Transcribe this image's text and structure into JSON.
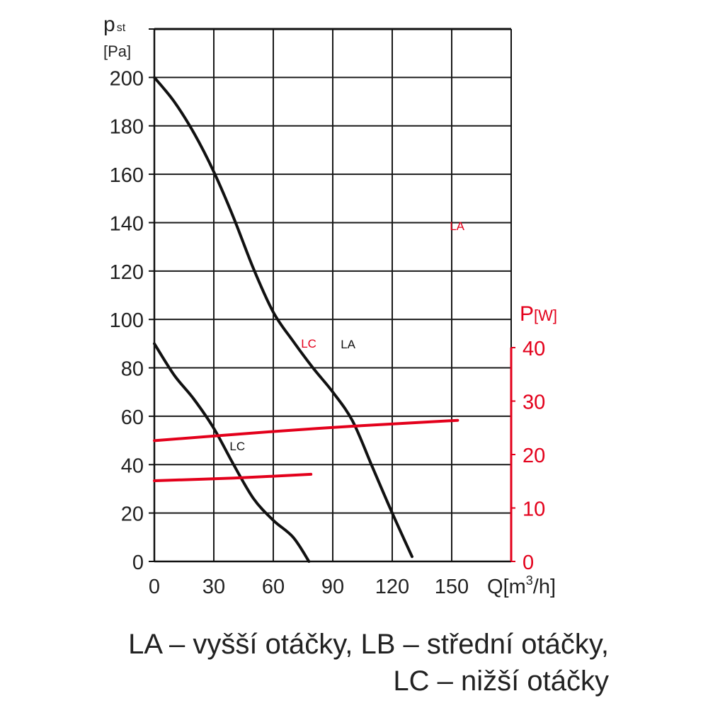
{
  "chart_data": {
    "type": "line",
    "x_axis": {
      "label": "Q[m³/h]",
      "label_prefix": "Q[m",
      "label_sup": "3",
      "label_suffix": "/h]",
      "range": [
        0,
        180
      ],
      "ticks": [
        0,
        30,
        60,
        90,
        120,
        150
      ],
      "tick_labels": [
        "0",
        "30",
        "60",
        "90",
        "120",
        "150"
      ]
    },
    "y_axis_left": {
      "label_main": "p",
      "label_sub": "st",
      "label_unit": "[Pa]",
      "range": [
        0,
        220
      ],
      "ticks": [
        0,
        20,
        40,
        60,
        80,
        100,
        120,
        140,
        160,
        180,
        200
      ],
      "tick_labels": [
        "0",
        "20",
        "40",
        "60",
        "80",
        "100",
        "120",
        "140",
        "160",
        "180",
        "200"
      ]
    },
    "y_axis_right": {
      "label": "P[W]",
      "label_main": "P",
      "label_unit": "[W]",
      "range": [
        0,
        40
      ],
      "ticks": [
        0,
        10,
        20,
        30,
        40
      ],
      "tick_labels": [
        "0",
        "10",
        "20",
        "30",
        "40"
      ],
      "color": "#e3001b"
    },
    "grid": true,
    "series": [
      {
        "name": "LA",
        "axis": "left",
        "color": "#111111",
        "points": [
          [
            0,
            200
          ],
          [
            10,
            190
          ],
          [
            20,
            177
          ],
          [
            30,
            161
          ],
          [
            40,
            142
          ],
          [
            50,
            121
          ],
          [
            60,
            103
          ],
          [
            70,
            91
          ],
          [
            80,
            80
          ],
          [
            90,
            70
          ],
          [
            100,
            58
          ],
          [
            110,
            39
          ],
          [
            120,
            20
          ],
          [
            130,
            2
          ]
        ]
      },
      {
        "name": "LC",
        "axis": "left",
        "color": "#111111",
        "points": [
          [
            0,
            90
          ],
          [
            10,
            77
          ],
          [
            20,
            67
          ],
          [
            30,
            55
          ],
          [
            40,
            40
          ],
          [
            50,
            26
          ],
          [
            60,
            17
          ],
          [
            70,
            10
          ],
          [
            78,
            0
          ]
        ]
      },
      {
        "name": "LA",
        "axis": "right",
        "color": "#e3001b",
        "points": [
          [
            0,
            22.6
          ],
          [
            60,
            24.3
          ],
          [
            100,
            25.3
          ],
          [
            153,
            26.4
          ]
        ]
      },
      {
        "name": "LC",
        "axis": "right",
        "color": "#e3001b",
        "points": [
          [
            0,
            15.1
          ],
          [
            40,
            15.6
          ],
          [
            79,
            16.3
          ]
        ]
      }
    ],
    "annotations": [
      {
        "text": "LA",
        "color": "#111111",
        "x": 94,
        "y": 88
      },
      {
        "text": "LC",
        "color": "#111111",
        "x": 38,
        "y": 46
      },
      {
        "text": "LA",
        "color": "#e3001b",
        "x": 149,
        "y": 62
      },
      {
        "text": "LC",
        "color": "#e3001b",
        "x": 74,
        "y": 40
      }
    ]
  },
  "caption": {
    "line1": "LA – vyšší otáčky, LB – střední otáčky,",
    "line2": "LC – nižší otáčky"
  }
}
